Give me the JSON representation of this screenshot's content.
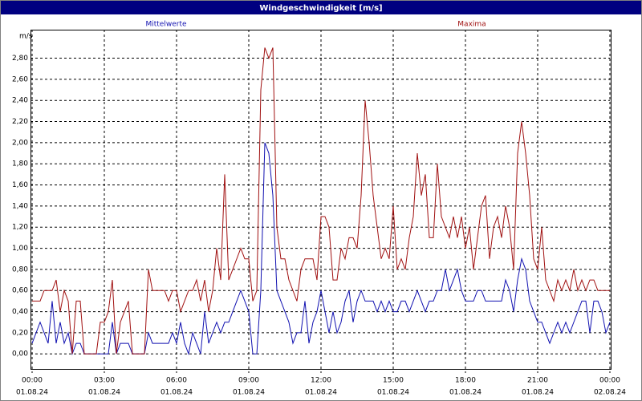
{
  "chart_data": {
    "type": "line",
    "title": "Windgeschwindigkeit [m/s]",
    "y_unit": "m/s",
    "x": [
      0,
      10,
      20,
      30,
      40,
      50,
      60,
      70,
      80,
      90,
      100,
      110,
      120,
      130,
      140,
      150,
      160,
      170,
      180,
      190,
      200,
      210,
      220,
      230,
      240,
      250,
      260,
      270,
      280,
      290,
      300,
      310,
      320,
      330,
      340,
      350,
      360,
      370,
      380,
      390,
      400,
      410,
      420,
      430,
      440,
      450,
      460,
      470,
      480,
      490,
      500,
      510,
      520,
      530,
      540,
      550,
      560,
      570,
      580,
      590,
      600,
      610,
      620,
      630,
      640,
      650,
      660,
      670,
      680,
      690,
      700,
      710,
      720,
      730,
      740,
      750,
      760,
      770,
      780,
      790,
      800,
      810,
      820,
      830,
      840,
      850,
      860,
      870,
      880,
      890,
      900,
      910,
      920,
      930,
      940,
      950,
      960,
      970,
      980,
      990,
      1000,
      1010,
      1020,
      1030,
      1040,
      1050,
      1060,
      1070,
      1080,
      1090,
      1100,
      1110,
      1120,
      1130,
      1140,
      1150,
      1160,
      1170,
      1180,
      1190,
      1200,
      1210,
      1220,
      1230,
      1240,
      1250,
      1260,
      1270,
      1280,
      1290,
      1300,
      1310,
      1320,
      1330,
      1340,
      1350,
      1360,
      1370,
      1380,
      1390,
      1400,
      1410,
      1420,
      1430,
      1440
    ],
    "series": [
      {
        "name": "Mittelwerte",
        "color": "#1010b0",
        "values": [
          0.1,
          0.2,
          0.3,
          0.2,
          0.1,
          0.5,
          0.1,
          0.3,
          0.1,
          0.2,
          0.0,
          0.1,
          0.1,
          0.0,
          0.0,
          0.0,
          0.0,
          0.0,
          0.0,
          0.0,
          0.3,
          0.0,
          0.1,
          0.1,
          0.1,
          0.0,
          0.0,
          0.0,
          0.0,
          0.2,
          0.1,
          0.1,
          0.1,
          0.1,
          0.1,
          0.2,
          0.1,
          0.3,
          0.1,
          0.0,
          0.2,
          0.1,
          0.0,
          0.4,
          0.1,
          0.2,
          0.3,
          0.2,
          0.3,
          0.3,
          0.4,
          0.5,
          0.6,
          0.5,
          0.4,
          0.0,
          0.0,
          0.6,
          2.0,
          1.9,
          1.5,
          0.6,
          0.5,
          0.4,
          0.3,
          0.1,
          0.2,
          0.2,
          0.5,
          0.1,
          0.3,
          0.4,
          0.6,
          0.4,
          0.2,
          0.4,
          0.2,
          0.3,
          0.5,
          0.6,
          0.3,
          0.5,
          0.6,
          0.5,
          0.5,
          0.5,
          0.4,
          0.5,
          0.4,
          0.5,
          0.4,
          0.4,
          0.5,
          0.5,
          0.4,
          0.5,
          0.6,
          0.5,
          0.4,
          0.5,
          0.5,
          0.6,
          0.6,
          0.8,
          0.6,
          0.7,
          0.8,
          0.6,
          0.5,
          0.5,
          0.5,
          0.6,
          0.6,
          0.5,
          0.5,
          0.5,
          0.5,
          0.5,
          0.7,
          0.6,
          0.4,
          0.7,
          0.9,
          0.8,
          0.5,
          0.4,
          0.3,
          0.3,
          0.2,
          0.1,
          0.2,
          0.3,
          0.2,
          0.3,
          0.2,
          0.3,
          0.4,
          0.5,
          0.5,
          0.2,
          0.5,
          0.5,
          0.4,
          0.2,
          0.3
        ]
      },
      {
        "name": "Maxima",
        "color": "#a01010",
        "values": [
          0.5,
          0.5,
          0.5,
          0.6,
          0.6,
          0.6,
          0.7,
          0.4,
          0.6,
          0.5,
          0.0,
          0.5,
          0.5,
          0.0,
          0.0,
          0.0,
          0.0,
          0.3,
          0.3,
          0.4,
          0.7,
          0.0,
          0.3,
          0.4,
          0.5,
          0.0,
          0.0,
          0.0,
          0.0,
          0.8,
          0.6,
          0.6,
          0.6,
          0.6,
          0.5,
          0.6,
          0.6,
          0.4,
          0.5,
          0.6,
          0.6,
          0.7,
          0.5,
          0.7,
          0.4,
          0.6,
          1.0,
          0.7,
          1.7,
          0.7,
          0.8,
          0.9,
          1.0,
          0.9,
          0.9,
          0.5,
          0.6,
          2.5,
          2.9,
          2.8,
          2.9,
          1.2,
          0.9,
          0.9,
          0.7,
          0.6,
          0.5,
          0.8,
          0.9,
          0.9,
          0.9,
          0.7,
          1.3,
          1.3,
          1.2,
          0.7,
          0.7,
          1.0,
          0.9,
          1.1,
          1.1,
          1.0,
          1.5,
          2.4,
          2.0,
          1.5,
          1.2,
          0.9,
          1.0,
          0.9,
          1.4,
          0.8,
          0.9,
          0.8,
          1.1,
          1.3,
          1.9,
          1.5,
          1.7,
          1.1,
          1.1,
          1.8,
          1.3,
          1.2,
          1.1,
          1.3,
          1.1,
          1.3,
          1.0,
          1.2,
          0.8,
          1.1,
          1.4,
          1.5,
          0.9,
          1.2,
          1.3,
          1.1,
          1.4,
          1.2,
          0.8,
          1.9,
          2.2,
          1.9,
          1.5,
          0.9,
          0.8,
          1.2,
          0.7,
          0.6,
          0.5,
          0.7,
          0.6,
          0.7,
          0.6,
          0.8,
          0.6,
          0.7,
          0.6,
          0.7,
          0.7,
          0.6,
          0.6,
          0.6,
          0.6
        ]
      }
    ],
    "xlim": [
      0,
      1440
    ],
    "xticks": [
      {
        "value": 0,
        "label": "00:00"
      },
      {
        "value": 180,
        "label": "03:00"
      },
      {
        "value": 360,
        "label": "06:00"
      },
      {
        "value": 540,
        "label": "09:00"
      },
      {
        "value": 720,
        "label": "12:00"
      },
      {
        "value": 900,
        "label": "15:00"
      },
      {
        "value": 1080,
        "label": "18:00"
      },
      {
        "value": 1260,
        "label": "21:00"
      },
      {
        "value": 1440,
        "label": "00:00"
      }
    ],
    "xtick_dates": [
      "01.08.24",
      "01.08.24",
      "01.08.24",
      "01.08.24",
      "01.08.24",
      "01.08.24",
      "01.08.24",
      "01.08.24",
      "02.08.24"
    ],
    "ylim": [
      -0.15,
      3.07
    ],
    "yticks": [
      {
        "value": 0,
        "label": "0,00"
      },
      {
        "value": 0.2,
        "label": "0,20"
      },
      {
        "value": 0.4,
        "label": "0,40"
      },
      {
        "value": 0.6,
        "label": "0,60"
      },
      {
        "value": 0.8,
        "label": "0,80"
      },
      {
        "value": 1,
        "label": "1,00"
      },
      {
        "value": 1.2,
        "label": "1,20"
      },
      {
        "value": 1.4,
        "label": "1,40"
      },
      {
        "value": 1.6,
        "label": "1,60"
      },
      {
        "value": 1.8,
        "label": "1,80"
      },
      {
        "value": 2,
        "label": "2,00"
      },
      {
        "value": 2.2,
        "label": "2,20"
      },
      {
        "value": 2.4,
        "label": "2,40"
      },
      {
        "value": 2.6,
        "label": "2,60"
      },
      {
        "value": 2.8,
        "label": "2,80"
      }
    ],
    "grid": true
  }
}
